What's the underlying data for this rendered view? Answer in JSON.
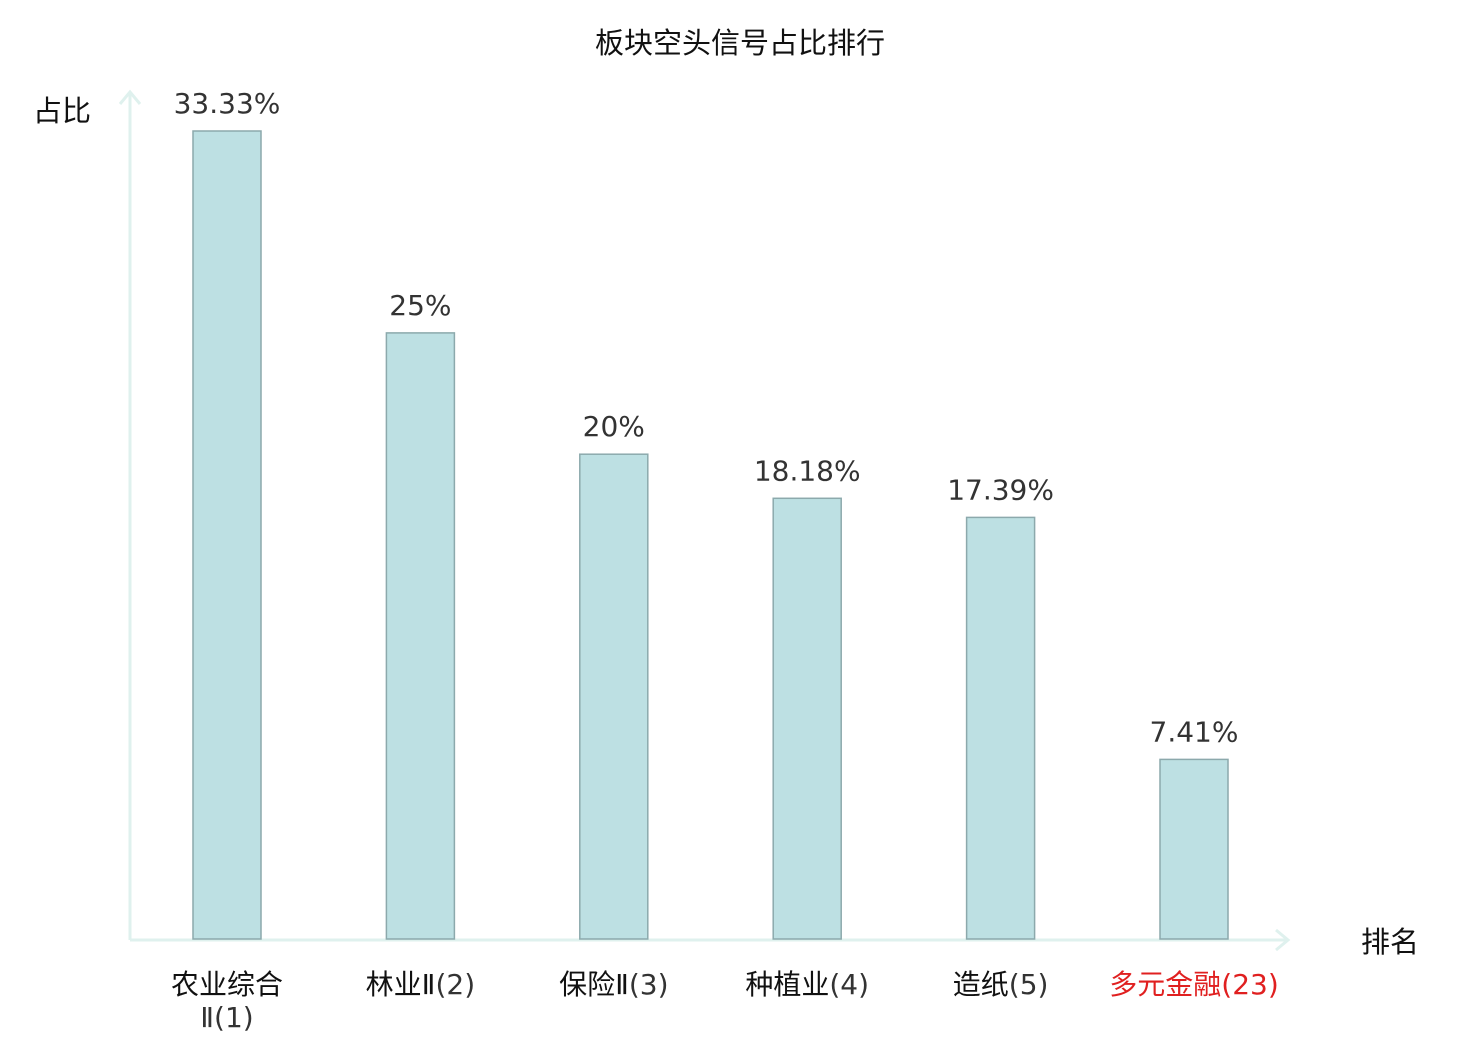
{
  "chart_data": {
    "type": "bar",
    "title": "板块空头信号占比排行",
    "ylabel": "占比",
    "xlabel": "排名",
    "categories": [
      {
        "name": "农业综合Ⅱ",
        "rank": "(1)",
        "highlight": false
      },
      {
        "name": "林业Ⅱ",
        "rank": "(2)",
        "highlight": false
      },
      {
        "name": "保险Ⅱ",
        "rank": "(3)",
        "highlight": false
      },
      {
        "name": "种植业",
        "rank": "(4)",
        "highlight": false
      },
      {
        "name": "造纸",
        "rank": "(5)",
        "highlight": false
      },
      {
        "name": "多元金融",
        "rank": "(23)",
        "highlight": true
      }
    ],
    "values": [
      33.33,
      25,
      20,
      18.18,
      17.39,
      7.41
    ],
    "value_labels": [
      "33.33%",
      "25%",
      "20%",
      "18.18%",
      "17.39%",
      "7.41%"
    ],
    "ylim": [
      0,
      33.33
    ],
    "grid": false,
    "colors": {
      "bar_fill": "#bde0e3",
      "bar_stroke": "#8ca9ac",
      "axis": "#dff1ee",
      "highlight_text": "#e02020"
    }
  }
}
